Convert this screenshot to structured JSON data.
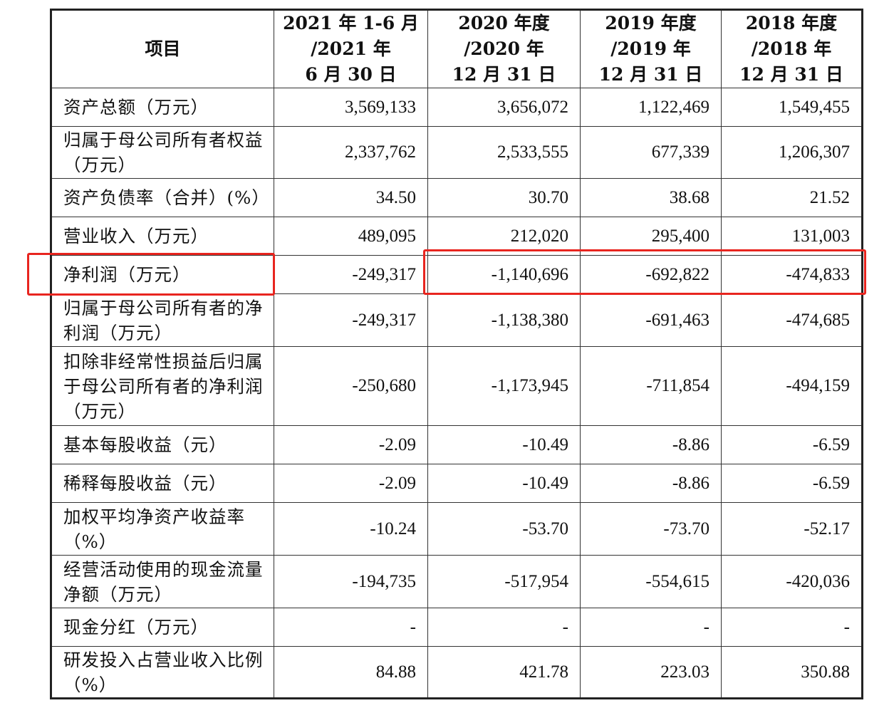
{
  "header": {
    "item": "项目",
    "periods": [
      [
        "2021 年 1-6 月",
        "/2021 年",
        "6 月 30 日"
      ],
      [
        "2020 年度",
        "/2020 年",
        "12 月 31 日"
      ],
      [
        "2019 年度",
        "/2019 年",
        "12 月 31 日"
      ],
      [
        "2018 年度",
        "/2018 年",
        "12 月 31 日"
      ]
    ]
  },
  "rows": [
    {
      "label": "资产总额（万元）",
      "values": [
        "3,569,133",
        "3,656,072",
        "1,122,469",
        "1,549,455"
      ]
    },
    {
      "label": "归属于母公司所有者权益（万元）",
      "values": [
        "2,337,762",
        "2,533,555",
        "677,339",
        "1,206,307"
      ]
    },
    {
      "label": "资产负债率（合并）(%）",
      "values": [
        "34.50",
        "30.70",
        "38.68",
        "21.52"
      ]
    },
    {
      "label": "营业收入（万元）",
      "values": [
        "489,095",
        "212,020",
        "295,400",
        "131,003"
      ]
    },
    {
      "label": "净利润（万元）",
      "values": [
        "-249,317",
        "-1,140,696",
        "-692,822",
        "-474,833"
      ]
    },
    {
      "label": "归属于母公司所有者的净利润（万元）",
      "values": [
        "-249,317",
        "-1,138,380",
        "-691,463",
        "-474,685"
      ]
    },
    {
      "label": "扣除非经常性损益后归属于母公司所有者的净利润（万元）",
      "values": [
        "-250,680",
        "-1,173,945",
        "-711,854",
        "-494,159"
      ]
    },
    {
      "label": "基本每股收益（元）",
      "values": [
        "-2.09",
        "-10.49",
        "-8.86",
        "-6.59"
      ]
    },
    {
      "label": "稀释每股收益（元）",
      "values": [
        "-2.09",
        "-10.49",
        "-8.86",
        "-6.59"
      ]
    },
    {
      "label": "加权平均净资产收益率（%）",
      "values": [
        "-10.24",
        "-53.70",
        "-73.70",
        "-52.17"
      ]
    },
    {
      "label": "经营活动使用的现金流量净额（万元）",
      "values": [
        "-194,735",
        "-517,954",
        "-554,615",
        "-420,036"
      ]
    },
    {
      "label": "现金分红（万元）",
      "values": [
        "-",
        "-",
        "-",
        "-"
      ]
    },
    {
      "label": "研发投入占营业收入比例（%）",
      "values": [
        "84.88",
        "421.78",
        "223.03",
        "350.88"
      ]
    }
  ]
}
